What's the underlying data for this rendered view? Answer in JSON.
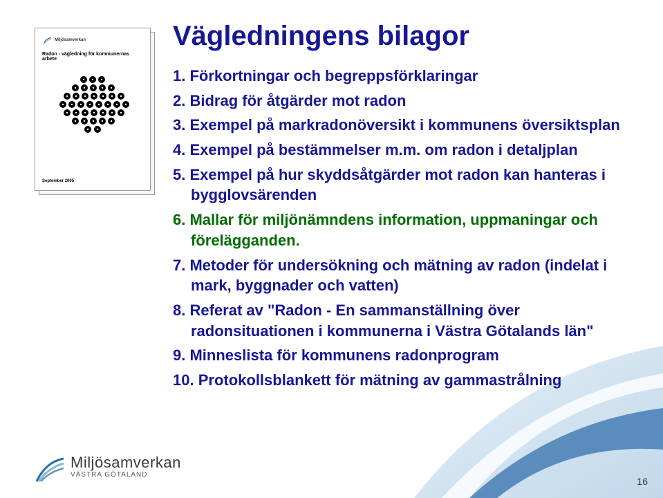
{
  "slide": {
    "title": "Vägledningens bilagor",
    "page_number": "16"
  },
  "list": {
    "items": [
      {
        "num": "1.",
        "text": "Förkortningar och begreppsförklaringar",
        "highlight": false
      },
      {
        "num": "2.",
        "text": "Bidrag för åtgärder mot radon",
        "highlight": false
      },
      {
        "num": "3.",
        "text": "Exempel på markradonöversikt i kommunens översiktsplan",
        "highlight": false
      },
      {
        "num": "4.",
        "text": "Exempel på bestämmelser m.m. om radon i detaljplan",
        "highlight": false
      },
      {
        "num": "5.",
        "text": "Exempel på hur skyddsåtgärder mot radon kan hanteras i bygglovsärenden",
        "highlight": false
      },
      {
        "num": "6.",
        "text": "Mallar för miljönämndens information, uppmaningar och förelägganden.",
        "highlight": true
      },
      {
        "num": "7.",
        "text": "Metoder för undersökning och mätning av radon (indelat i mark, byggnader och vatten)",
        "highlight": false
      },
      {
        "num": "8.",
        "text": "Referat av \"Radon - En sammanställning över radonsituationen i kommunerna i Västra Götalands län\"",
        "highlight": false
      },
      {
        "num": "9.",
        "text": "Minneslista för kommunens radonprogram",
        "highlight": false
      },
      {
        "num": "10.",
        "text": "Protokollsblankett för mätning av gammastrålning",
        "highlight": false
      }
    ]
  },
  "thumbnail": {
    "logo_text": "Miljösamverkan",
    "title": "Radon - vägledning för kommunernas arbete",
    "date": "September 2005"
  },
  "footer": {
    "brand": "Miljösamverkan",
    "sub": "VÄSTRA GÖTALAND"
  },
  "colors": {
    "title_blue": "#171794",
    "highlight_green": "#006c00",
    "swoosh_blue": "#2a6aa8",
    "swoosh_light": "#8fb8d8"
  }
}
